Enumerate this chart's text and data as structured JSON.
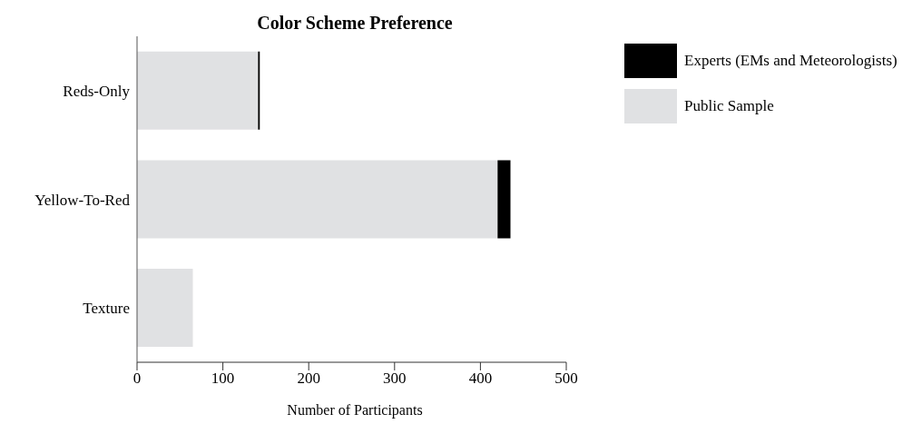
{
  "chart_data": {
    "type": "bar",
    "orientation": "horizontal",
    "stacked": true,
    "title": "Color Scheme Preference",
    "xlabel": "Number of Participants",
    "categories": [
      "Reds-Only",
      "Yellow-To-Red",
      "Texture"
    ],
    "series": [
      {
        "name": "Public Sample",
        "color": "#e0e1e3",
        "values": [
          141,
          420,
          65
        ]
      },
      {
        "name": "Experts (EMs and Meteorologists)",
        "color": "#000000",
        "values": [
          2,
          15,
          0
        ]
      }
    ],
    "xlim": [
      0,
      500
    ],
    "xticks": [
      0,
      100,
      200,
      300,
      400,
      500
    ],
    "grid": false,
    "legend": "top right"
  }
}
